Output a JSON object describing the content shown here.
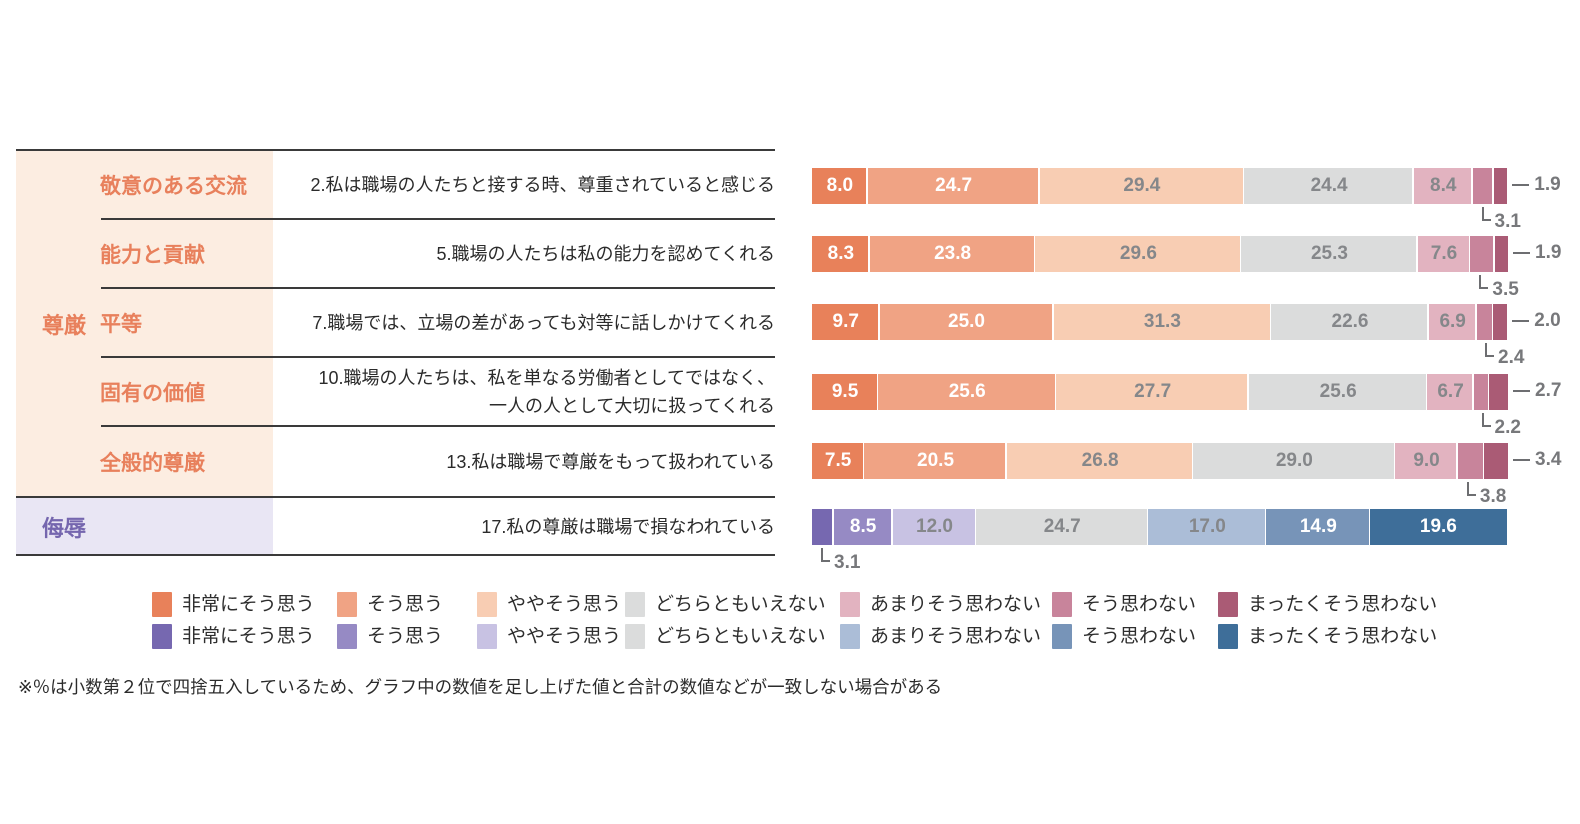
{
  "table": {
    "groups": [
      {
        "label": "尊厳",
        "color": "#E8805C",
        "bg": "#FCEDE1",
        "row_start": 0,
        "row_end": 4
      },
      {
        "label": "侮辱",
        "color": "#7566AE",
        "bg": "#E9E6F4",
        "row_start": 5,
        "row_end": 5
      }
    ],
    "rows": [
      {
        "category": "敬意のある交流",
        "question_lines": [
          "2.私は職場の人たちと接する時、尊重されていると感じる"
        ]
      },
      {
        "category": "能力と貢献",
        "question_lines": [
          "5.職場の人たちは私の能力を認めてくれる"
        ]
      },
      {
        "category": "平等",
        "question_lines": [
          "7.職場では、立場の差があっても対等に話しかけてくれる"
        ]
      },
      {
        "category": "固有の価値",
        "question_lines": [
          "10.職場の人たちは、私を単なる労働者としてではなく、",
          "一人の人として大切に扱ってくれる"
        ]
      },
      {
        "category": "全般的尊厳",
        "question_lines": [
          "13.私は職場で尊厳をもって扱われている"
        ]
      },
      {
        "category": "",
        "question_lines": [
          "17.私の尊厳は職場で損なわれている"
        ]
      }
    ]
  },
  "chart_data": {
    "type": "bar",
    "subtype": "horizontal-stacked-100-percent",
    "unit": "%",
    "palettes": {
      "warm": [
        {
          "name": "非常にそう思う",
          "color": "#E8815A",
          "text": "#FFFFFF"
        },
        {
          "name": "そう思う",
          "color": "#F0A384",
          "text": "#FFFFFF"
        },
        {
          "name": "ややそう思う",
          "color": "#F8CDB3",
          "text": "#85878A"
        },
        {
          "name": "どちらともいえない",
          "color": "#DBDCDC",
          "text": "#85878A"
        },
        {
          "name": "あまりそう思わない",
          "color": "#E2B3C0",
          "text": "#85878A"
        },
        {
          "name": "そう思わない",
          "color": "#C8849B",
          "text": "#85878A"
        },
        {
          "name": "まったくそう思わない",
          "color": "#AA5B75",
          "text": "#85878A"
        }
      ],
      "cool": [
        {
          "name": "非常にそう思う",
          "color": "#7668B0",
          "text": "#85878A"
        },
        {
          "name": "そう思う",
          "color": "#968AC4",
          "text": "#FFFFFF"
        },
        {
          "name": "ややそう思う",
          "color": "#C8C2E3",
          "text": "#85878A"
        },
        {
          "name": "どちらともいえない",
          "color": "#DBDCDC",
          "text": "#85878A"
        },
        {
          "name": "あまりそう思わない",
          "color": "#ABBDD7",
          "text": "#85878A"
        },
        {
          "name": "そう思わない",
          "color": "#7794B8",
          "text": "#FFFFFF"
        },
        {
          "name": "まったくそう思わない",
          "color": "#3E6E99",
          "text": "#FFFFFF"
        }
      ]
    },
    "rows": [
      {
        "category": "敬意のある交流",
        "palette": "warm",
        "values": [
          8.0,
          24.7,
          29.4,
          24.4,
          8.4,
          3.1,
          1.9
        ],
        "callout_below": [
          5
        ],
        "callout_right": [
          6
        ]
      },
      {
        "category": "能力と貢献",
        "palette": "warm",
        "values": [
          8.3,
          23.8,
          29.6,
          25.3,
          7.6,
          3.5,
          1.9
        ],
        "callout_below": [
          5
        ],
        "callout_right": [
          6
        ]
      },
      {
        "category": "平等",
        "palette": "warm",
        "values": [
          9.7,
          25.0,
          31.3,
          22.6,
          6.9,
          2.4,
          2.0
        ],
        "callout_below": [
          5
        ],
        "callout_right": [
          6
        ]
      },
      {
        "category": "固有の価値",
        "palette": "warm",
        "values": [
          9.5,
          25.6,
          27.7,
          25.6,
          6.7,
          2.2,
          2.7
        ],
        "callout_below": [
          5
        ],
        "callout_right": [
          6
        ]
      },
      {
        "category": "全般的尊厳",
        "palette": "warm",
        "values": [
          7.5,
          20.5,
          26.8,
          29.0,
          9.0,
          3.8,
          3.4
        ],
        "callout_below": [
          5
        ],
        "callout_right": [
          6
        ]
      },
      {
        "category": "侮辱",
        "palette": "cool",
        "values": [
          3.1,
          8.5,
          12.0,
          24.7,
          17.0,
          14.9,
          19.6
        ],
        "callout_below": [
          0
        ],
        "callout_right": []
      }
    ],
    "legend": {
      "row1": [
        "非常にそう思う",
        "そう思う",
        "ややそう思う",
        "どちらともいえない",
        "あまりそう思わない",
        "そう思わない",
        "まったくそう思わない"
      ],
      "row2": [
        "非常にそう思う",
        "そう思う",
        "ややそう思う",
        "どちらともいえない",
        "あまりそう思わない",
        "そう思わない",
        "まったくそう思わない"
      ]
    }
  },
  "footnote": "※％は小数第２位で四捨五入しているため、グラフ中の数値を足し上げた値と合計の数値などが一致しない場合がある"
}
